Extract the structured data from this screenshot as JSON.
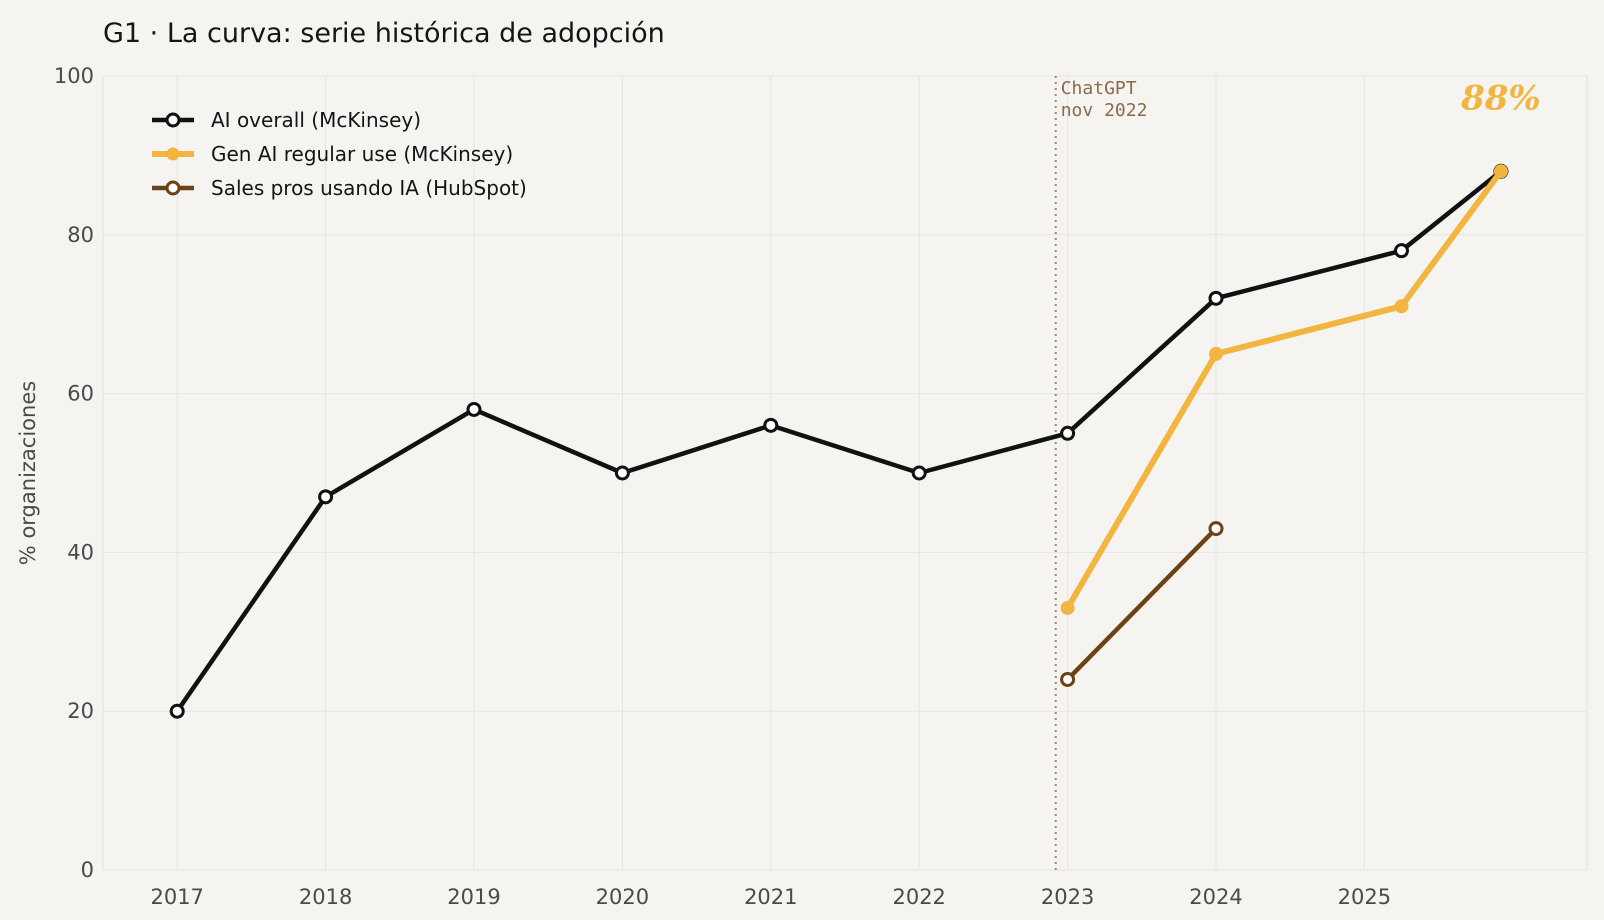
{
  "chart_data": {
    "type": "line",
    "title": "G1 · La curva: serie histórica de adopción",
    "xlabel": "",
    "ylabel": "% organizaciones",
    "xlim": [
      2016.5,
      2026.5
    ],
    "ylim": [
      0,
      100
    ],
    "x_ticks": [
      2017,
      2018,
      2019,
      2020,
      2021,
      2022,
      2023,
      2024,
      2025
    ],
    "y_ticks": [
      0,
      20,
      40,
      60,
      80,
      100
    ],
    "grid": true,
    "legend_position": "top-left",
    "series": [
      {
        "name": "AI overall (McKinsey)",
        "color": "#111111",
        "marker": "hollow",
        "points": [
          {
            "x": 2017,
            "y": 20
          },
          {
            "x": 2018,
            "y": 47
          },
          {
            "x": 2019,
            "y": 58
          },
          {
            "x": 2020,
            "y": 50
          },
          {
            "x": 2021,
            "y": 56
          },
          {
            "x": 2022,
            "y": 50
          },
          {
            "x": 2023,
            "y": 55
          },
          {
            "x": 2024,
            "y": 72
          },
          {
            "x": 2025.25,
            "y": 78
          },
          {
            "x": 2025.92,
            "y": 88
          }
        ]
      },
      {
        "name": "Gen AI regular use (McKinsey)",
        "color": "#f2b53f",
        "marker": "filled",
        "points": [
          {
            "x": 2023,
            "y": 33
          },
          {
            "x": 2024,
            "y": 65
          },
          {
            "x": 2025.25,
            "y": 71
          },
          {
            "x": 2025.92,
            "y": 88
          }
        ]
      },
      {
        "name": "Sales pros usando IA (HubSpot)",
        "color": "#6b4216",
        "marker": "hollow",
        "points": [
          {
            "x": 2023,
            "y": 24
          },
          {
            "x": 2024,
            "y": 43
          }
        ]
      }
    ],
    "annotations": [
      {
        "type": "vline",
        "x": 2022.92,
        "color": "#a88466",
        "text_line1": "ChatGPT",
        "text_line2": "nov 2022"
      },
      {
        "type": "text",
        "x": 2025.92,
        "y": 88,
        "text": "88%",
        "color": "#f2b53f"
      }
    ]
  }
}
